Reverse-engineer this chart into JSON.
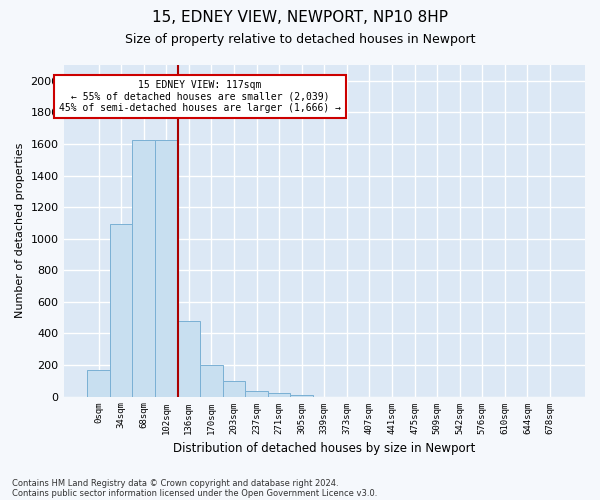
{
  "title1": "15, EDNEY VIEW, NEWPORT, NP10 8HP",
  "title2": "Size of property relative to detached houses in Newport",
  "xlabel": "Distribution of detached houses by size in Newport",
  "ylabel": "Number of detached properties",
  "bar_color": "#c8dff0",
  "bar_edge_color": "#7ab0d4",
  "vline_color": "#aa0000",
  "vline_x": 3.5,
  "annotation_title": "15 EDNEY VIEW: 117sqm",
  "annotation_line1": "← 55% of detached houses are smaller (2,039)",
  "annotation_line2": "45% of semi-detached houses are larger (1,666) →",
  "annotation_box_color": "#ffffff",
  "annotation_box_edge": "#cc0000",
  "footnote1": "Contains HM Land Registry data © Crown copyright and database right 2024.",
  "footnote2": "Contains public sector information licensed under the Open Government Licence v3.0.",
  "categories": [
    "0sqm",
    "34sqm",
    "68sqm",
    "102sqm",
    "136sqm",
    "170sqm",
    "203sqm",
    "237sqm",
    "271sqm",
    "305sqm",
    "339sqm",
    "373sqm",
    "407sqm",
    "441sqm",
    "475sqm",
    "509sqm",
    "542sqm",
    "576sqm",
    "610sqm",
    "644sqm",
    "678sqm"
  ],
  "values": [
    170,
    1090,
    1625,
    1625,
    480,
    200,
    100,
    35,
    20,
    10,
    0,
    0,
    0,
    0,
    0,
    0,
    0,
    0,
    0,
    0,
    0
  ],
  "ylim": [
    0,
    2100
  ],
  "yticks": [
    0,
    200,
    400,
    600,
    800,
    1000,
    1200,
    1400,
    1600,
    1800,
    2000
  ],
  "plot_bg_color": "#dce8f5",
  "fig_bg_color": "#f5f8fc",
  "grid_color": "#ffffff",
  "figsize": [
    6.0,
    5.0
  ],
  "dpi": 100
}
